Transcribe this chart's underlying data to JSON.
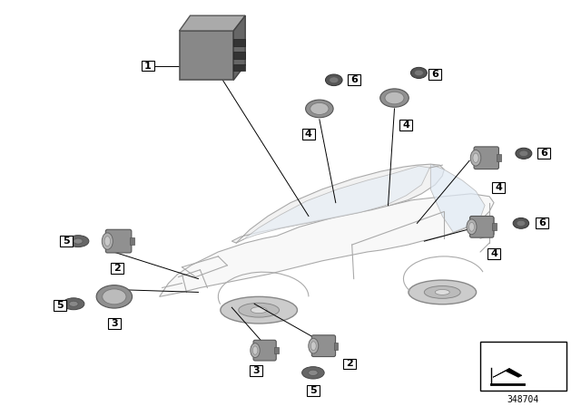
{
  "background_color": "#ffffff",
  "part_number": "348704",
  "car_body_color": "#f5f5f5",
  "car_line_color": "#aaaaaa",
  "part_gray_light": "#aaaaaa",
  "part_gray_mid": "#888888",
  "part_gray_dark": "#555555",
  "label_bg": "#ffffff",
  "label_border": "#000000",
  "line_color": "#000000"
}
